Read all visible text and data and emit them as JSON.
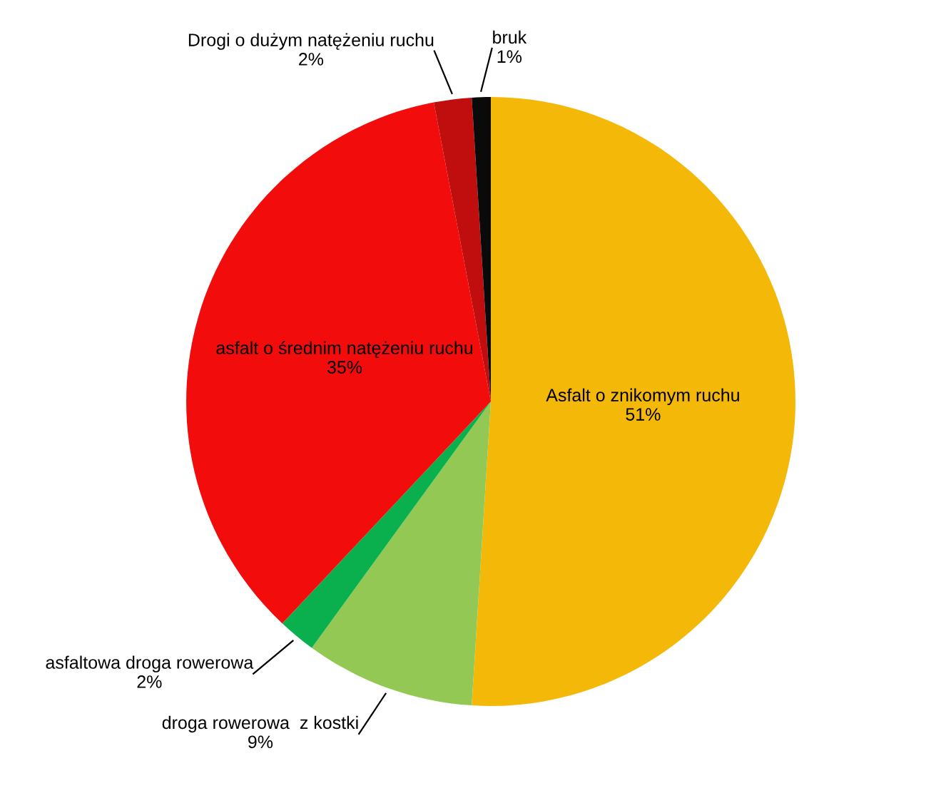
{
  "chart_data": {
    "type": "pie",
    "categories": [
      "Asfalt o znikomym ruchu",
      "droga rowerowa  z kostki",
      "asfaltowa droga rowerowa",
      "asfalt o średnim natężeniu ruchu",
      "Drogi o dużym natężeniu ruchu",
      "bruk"
    ],
    "values": [
      51,
      9,
      2,
      35,
      2,
      1
    ],
    "value_labels": [
      "51%",
      "9%",
      "2%",
      "35%",
      "2%",
      "1%"
    ],
    "colors": [
      "#f4b808",
      "#92c853",
      "#0bb04e",
      "#f20c0c",
      "#c00e0e",
      "#0a0a0a"
    ],
    "legend": false
  }
}
